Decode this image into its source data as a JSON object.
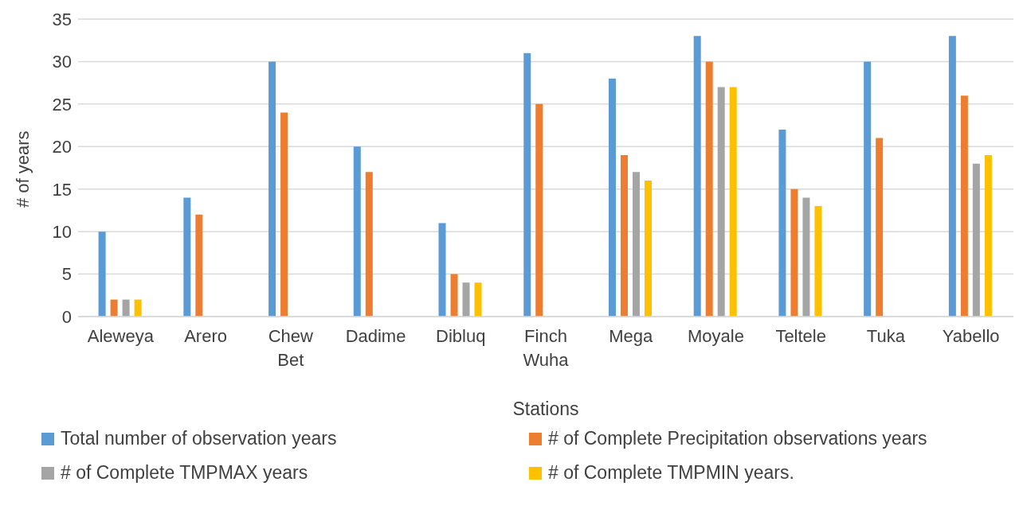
{
  "chart_data": {
    "type": "bar",
    "xlabel": "Stations",
    "ylabel": "# of years",
    "categories": [
      "Aleweya",
      "Arero",
      "Chew Bet",
      "Dadime",
      "Dibluq",
      "Finch Wuha",
      "Mega",
      "Moyale",
      "Teltele",
      "Tuka",
      "Yabello"
    ],
    "series": [
      {
        "name": "Total number of observation years",
        "color": "#5b9bd5",
        "values": [
          10,
          14,
          30,
          20,
          11,
          31,
          28,
          33,
          22,
          30,
          33
        ]
      },
      {
        "name": "# of Complete Precipitation observations years",
        "color": "#ed7d31",
        "values": [
          2,
          12,
          24,
          17,
          5,
          25,
          19,
          30,
          15,
          21,
          26
        ]
      },
      {
        "name": "# of Complete TMPMAX years",
        "color": "#a5a5a5",
        "values": [
          2,
          0,
          0,
          0,
          4,
          0,
          17,
          27,
          14,
          0,
          18
        ]
      },
      {
        "name": "# of Complete TMPMIN years.",
        "color": "#ffc000",
        "values": [
          2,
          0,
          0,
          0,
          4,
          0,
          16,
          27,
          13,
          0,
          19
        ]
      }
    ],
    "ylim": [
      0,
      35
    ],
    "yticks": [
      0,
      5,
      10,
      15,
      20,
      25,
      30,
      35
    ],
    "grid": "y",
    "legend": "bottom"
  }
}
